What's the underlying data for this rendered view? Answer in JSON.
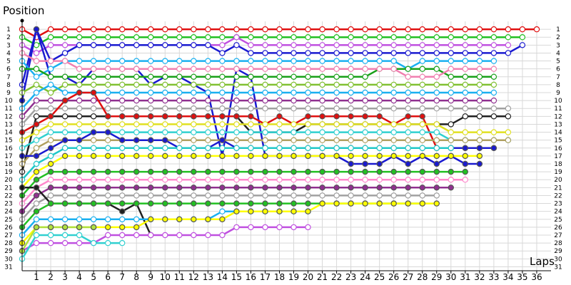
{
  "chart_data": {
    "type": "line",
    "xlabel": "Laps",
    "ylabel": "Position",
    "x_ticks": [
      1,
      2,
      3,
      4,
      5,
      6,
      7,
      8,
      9,
      10,
      11,
      12,
      13,
      14,
      15,
      16,
      17,
      18,
      19,
      20,
      21,
      22,
      23,
      24,
      25,
      26,
      27,
      28,
      29,
      30,
      31,
      32,
      33,
      34,
      35,
      36
    ],
    "y_ticks": [
      1,
      2,
      3,
      4,
      5,
      6,
      7,
      8,
      9,
      10,
      11,
      12,
      13,
      14,
      15,
      16,
      17,
      18,
      19,
      20,
      21,
      22,
      23,
      24,
      25,
      26,
      27,
      28,
      29,
      30,
      31
    ],
    "xlim": [
      0,
      37
    ],
    "ylim": [
      0,
      31
    ],
    "y_inverted": true,
    "grid": true,
    "legend": "none",
    "series": [
      {
        "color": "#e01010",
        "marker": "hollow",
        "start": 1,
        "values": [
          1,
          2,
          1,
          1,
          1,
          1,
          1,
          1,
          1,
          1,
          1,
          1,
          1,
          1,
          1,
          1,
          1,
          1,
          1,
          1,
          1,
          1,
          1,
          1,
          1,
          1,
          1,
          1,
          1,
          1,
          1,
          1,
          1,
          1,
          1,
          1,
          1
        ]
      },
      {
        "color": "#22c022",
        "marker": "hollow",
        "start": 1,
        "values": [
          2,
          3,
          2,
          2,
          2,
          2,
          2,
          2,
          2,
          2,
          2,
          2,
          2,
          2,
          2,
          2,
          2,
          2,
          2,
          2,
          2,
          2,
          2,
          2,
          2,
          2,
          2,
          2,
          2,
          2,
          2,
          2,
          2,
          2,
          2,
          2
        ]
      },
      {
        "color": "#c050e0",
        "marker": "hollow",
        "start": 1,
        "values": [
          3,
          4,
          3,
          3,
          3,
          3,
          3,
          3,
          3,
          3,
          3,
          3,
          3,
          3,
          3,
          2,
          3,
          3,
          3,
          3,
          3,
          3,
          3,
          3,
          3,
          3,
          3,
          3,
          3,
          3,
          3,
          3,
          3,
          3,
          3
        ]
      },
      {
        "color": "#1a1ad0",
        "marker": "hollow",
        "start": 1,
        "values": [
          8,
          1,
          5,
          4,
          3,
          3,
          3,
          3,
          3,
          3,
          3,
          3,
          3,
          3,
          4,
          3,
          4,
          4,
          4,
          4,
          4,
          4,
          4,
          4,
          4,
          4,
          4,
          4,
          4,
          4,
          4,
          4,
          4,
          4,
          4,
          3
        ]
      },
      {
        "color": "#1a1ad0",
        "marker": "filled",
        "start": 1,
        "values": [
          10,
          1,
          7,
          7,
          8,
          6,
          6,
          6,
          6,
          8,
          7,
          7,
          8,
          9,
          17,
          6,
          7,
          17,
          17,
          17,
          17,
          17,
          17,
          18,
          18,
          18,
          17,
          18,
          17,
          18,
          17,
          18,
          18
        ]
      },
      {
        "color": "#1ab0f0",
        "marker": "hollow",
        "start": 1,
        "values": [
          5,
          7,
          6,
          5,
          5,
          5,
          5,
          5,
          5,
          5,
          5,
          5,
          5,
          5,
          5,
          5,
          5,
          5,
          5,
          5,
          5,
          5,
          5,
          5,
          5,
          5,
          5,
          6,
          5,
          5,
          5,
          5,
          5,
          5
        ]
      },
      {
        "color": "#18a018",
        "marker": "hollow",
        "start": 1,
        "values": [
          6,
          6,
          7,
          7,
          7,
          7,
          7,
          7,
          7,
          7,
          7,
          7,
          7,
          7,
          7,
          7,
          7,
          7,
          7,
          7,
          7,
          7,
          7,
          7,
          7,
          6,
          6,
          6,
          6,
          6,
          7,
          7,
          7,
          7
        ]
      },
      {
        "color": "#f080b0",
        "marker": "hollow",
        "start": 1,
        "values": [
          4,
          5,
          5,
          5,
          6,
          6,
          6,
          6,
          6,
          6,
          6,
          6,
          6,
          6,
          6,
          6,
          6,
          6,
          6,
          6,
          6,
          6,
          6,
          6,
          6,
          6,
          6,
          7,
          7,
          7,
          6,
          6,
          6,
          6
        ]
      },
      {
        "color": "#80c030",
        "marker": "hollow",
        "start": 1,
        "values": [
          9,
          8,
          9,
          8,
          8,
          8,
          8,
          8,
          8,
          8,
          8,
          8,
          8,
          8,
          8,
          8,
          8,
          8,
          8,
          8,
          8,
          8,
          8,
          8,
          8,
          8,
          8,
          8,
          8,
          8,
          8,
          8,
          8,
          8
        ]
      },
      {
        "color": "#1ab0f0",
        "marker": "hollow",
        "start": 1,
        "values": [
          11,
          9,
          8,
          9,
          9,
          9,
          9,
          9,
          9,
          9,
          9,
          9,
          9,
          9,
          9,
          9,
          9,
          9,
          9,
          9,
          9,
          9,
          9,
          9,
          9,
          9,
          9,
          9,
          9,
          9,
          9,
          9,
          9,
          9
        ]
      },
      {
        "color": "#903090",
        "marker": "hollow",
        "start": 1,
        "values": [
          12,
          10,
          10,
          10,
          10,
          10,
          10,
          10,
          10,
          10,
          10,
          10,
          10,
          10,
          10,
          10,
          10,
          10,
          10,
          10,
          10,
          10,
          10,
          10,
          10,
          10,
          10,
          10,
          10,
          10,
          10,
          10,
          10,
          10
        ]
      },
      {
        "color": "#a0a0a0",
        "marker": "hollow",
        "start": 1,
        "values": [
          13,
          11,
          11,
          11,
          11,
          11,
          11,
          11,
          11,
          11,
          11,
          11,
          11,
          11,
          11,
          11,
          11,
          11,
          11,
          11,
          11,
          11,
          11,
          11,
          11,
          11,
          11,
          11,
          11,
          11,
          11,
          11,
          11,
          11,
          11
        ]
      },
      {
        "color": "#202020",
        "marker": "hollow",
        "start": 1,
        "values": [
          19,
          12,
          12,
          12,
          12,
          12,
          12,
          12,
          12,
          12,
          12,
          12,
          12,
          12,
          12,
          12,
          14,
          14,
          14,
          14,
          13,
          13,
          13,
          13,
          13,
          13,
          13,
          13,
          13,
          13,
          13,
          12,
          12,
          12,
          12
        ]
      },
      {
        "color": "#e01010",
        "marker": "filled",
        "start": 1,
        "values": [
          14,
          13,
          12,
          10,
          9,
          9,
          12,
          12,
          12,
          12,
          12,
          12,
          12,
          12,
          12,
          12,
          12,
          13,
          12,
          13,
          12,
          12,
          12,
          12,
          12,
          12,
          13,
          12,
          12,
          16,
          16,
          16,
          16,
          16
        ]
      },
      {
        "color": "#e0e020",
        "marker": "hollow",
        "start": 1,
        "values": [
          15,
          14,
          13,
          13,
          13,
          13,
          13,
          13,
          13,
          13,
          13,
          13,
          13,
          13,
          13,
          13,
          13,
          13,
          13,
          13,
          13,
          13,
          13,
          13,
          13,
          13,
          13,
          13,
          13,
          13,
          14,
          14,
          14,
          14,
          14
        ]
      },
      {
        "color": "#30d0d0",
        "marker": "hollow",
        "start": 1,
        "values": [
          16,
          15,
          14,
          14,
          14,
          14,
          14,
          14,
          14,
          14,
          14,
          14,
          14,
          14,
          14,
          14,
          14,
          14,
          14,
          14,
          14,
          14,
          14,
          14,
          14,
          14,
          14,
          14,
          14,
          14,
          15,
          15,
          15,
          15,
          15
        ]
      },
      {
        "color": "#b0a060",
        "marker": "hollow",
        "start": 1,
        "values": [
          18,
          16,
          15,
          15,
          15,
          15,
          15,
          15,
          15,
          15,
          15,
          15,
          15,
          15,
          15,
          15,
          15,
          15,
          15,
          15,
          15,
          15,
          15,
          15,
          15,
          15,
          15,
          15,
          15,
          15,
          15,
          15,
          15,
          15,
          15
        ]
      },
      {
        "color": "#1a1ad0",
        "marker": "filled",
        "start": 1,
        "values": [
          17,
          17,
          16,
          15,
          15,
          14,
          14,
          15,
          15,
          15,
          15,
          16,
          16,
          16,
          15,
          16,
          16,
          16,
          16,
          16,
          16,
          16,
          16,
          16,
          16,
          16,
          16,
          16,
          16,
          16,
          16,
          16,
          16,
          16
        ]
      },
      {
        "color": "#20c8c8",
        "marker": "hollow",
        "start": 1,
        "values": [
          20,
          18,
          17,
          16,
          16,
          16,
          16,
          16,
          16,
          16,
          16,
          16,
          16,
          16,
          16,
          16,
          16,
          16,
          16,
          16,
          16,
          16,
          16,
          16,
          16,
          16,
          16,
          16,
          16,
          16,
          16
        ]
      },
      {
        "color": "#ffff00",
        "marker": "filled",
        "start": 1,
        "values": [
          21,
          19,
          18,
          17,
          17,
          17,
          17,
          17,
          17,
          17,
          17,
          17,
          17,
          17,
          17,
          17,
          17,
          17,
          17,
          17,
          17,
          17,
          17,
          17,
          17,
          17,
          17,
          17,
          17,
          17,
          17,
          17,
          17
        ]
      },
      {
        "color": "#22c022",
        "marker": "filled",
        "start": 1,
        "values": [
          22,
          20,
          19,
          19,
          19,
          19,
          19,
          19,
          19,
          19,
          19,
          19,
          19,
          19,
          19,
          19,
          19,
          19,
          19,
          19,
          19,
          19,
          19,
          19,
          19,
          19,
          19,
          19,
          19,
          19,
          19,
          19
        ]
      },
      {
        "color": "#ff88cc",
        "marker": "hollow",
        "start": 1,
        "values": [
          23,
          21,
          20,
          20,
          20,
          20,
          20,
          20,
          20,
          20,
          20,
          20,
          20,
          20,
          20,
          20,
          20,
          20,
          20,
          20,
          20,
          20,
          20,
          20,
          20,
          20,
          20,
          20,
          20,
          20,
          20,
          20
        ]
      },
      {
        "color": "#903090",
        "marker": "filled",
        "start": 1,
        "values": [
          24,
          22,
          21,
          21,
          21,
          21,
          21,
          21,
          21,
          21,
          21,
          21,
          21,
          21,
          21,
          21,
          21,
          21,
          21,
          21,
          21,
          21,
          21,
          21,
          21,
          21,
          21,
          21,
          21,
          21,
          21
        ]
      },
      {
        "color": "#a0a0a0",
        "marker": "hollow",
        "start": 1,
        "values": [
          25,
          23,
          22,
          22,
          22,
          22,
          22,
          22,
          22,
          22,
          22,
          22,
          22,
          22,
          22,
          22,
          22,
          22,
          22,
          22,
          22,
          22,
          22,
          22,
          22,
          22,
          22,
          22,
          22,
          22
        ]
      },
      {
        "color": "#202020",
        "marker": "filled",
        "start": 1,
        "values": [
          21,
          21,
          23,
          23,
          23,
          23,
          23,
          24,
          23,
          27
        ]
      },
      {
        "color": "#22c022",
        "marker": "filled",
        "start": 1,
        "values": [
          26,
          24,
          23,
          23,
          23,
          23,
          23,
          23,
          23,
          23,
          23,
          23,
          23,
          23,
          23,
          23,
          23,
          23,
          23,
          23,
          23,
          23,
          23,
          23,
          23,
          23,
          23,
          23,
          23
        ]
      },
      {
        "color": "#1ab0f0",
        "marker": "hollow",
        "start": 1,
        "values": [
          27,
          25,
          25,
          25,
          25,
          25,
          25,
          25,
          25,
          25,
          25,
          25,
          25,
          25,
          24,
          24,
          24,
          24,
          24,
          24,
          24
        ]
      },
      {
        "color": "#ffff00",
        "marker": "filled",
        "start": 1,
        "values": [
          28,
          26,
          26,
          26,
          26,
          26,
          26,
          26,
          26,
          25,
          25,
          25,
          25,
          25,
          25,
          24,
          24,
          24,
          24,
          24,
          24,
          23,
          23,
          23,
          23,
          23,
          23,
          23,
          23,
          23
        ]
      },
      {
        "color": "#c050e0",
        "marker": "hollow",
        "start": 1,
        "values": [
          29,
          28,
          28,
          28,
          28,
          28,
          27,
          27,
          27,
          27,
          27,
          27,
          27,
          27,
          27,
          26,
          26,
          26,
          26,
          26,
          26
        ]
      },
      {
        "color": "#30d0d0",
        "marker": "hollow",
        "start": 1,
        "values": [
          30,
          27,
          27,
          27,
          27,
          28,
          28,
          28
        ]
      },
      {
        "color": "#b0e040",
        "marker": "filled",
        "start": 1,
        "values": [
          29,
          26,
          26,
          26,
          26,
          26
        ]
      }
    ]
  }
}
